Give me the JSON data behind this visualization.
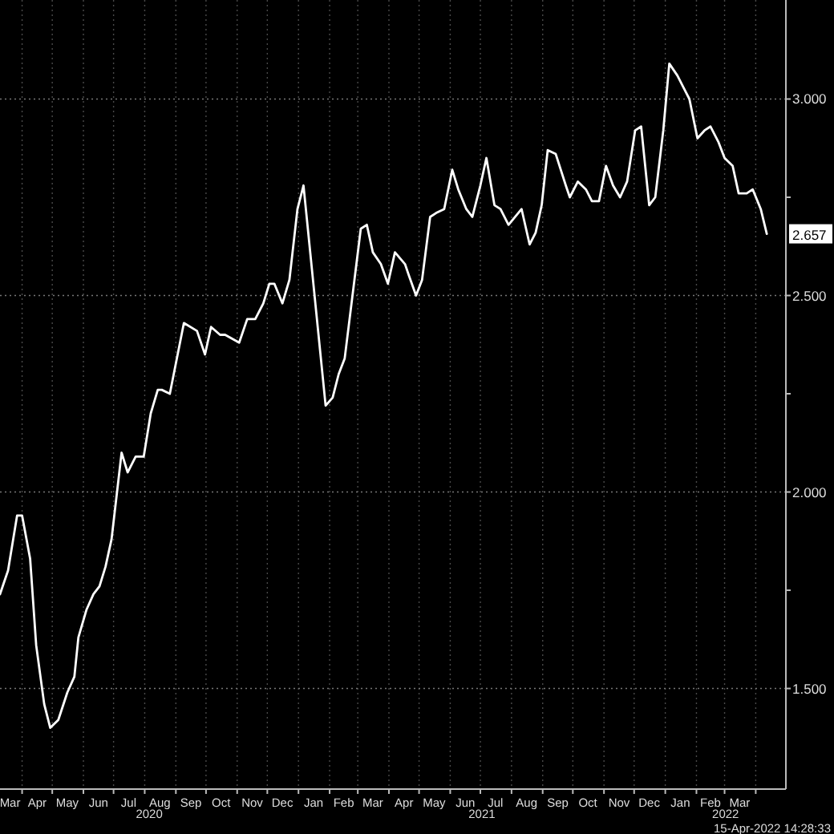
{
  "chart_data": {
    "type": "line",
    "x": [
      "2020-03-10",
      "2020-03-18",
      "2020-03-27",
      "2020-04-01",
      "2020-04-09",
      "2020-04-15",
      "2020-04-23",
      "2020-04-29",
      "2020-05-07",
      "2020-05-16",
      "2020-05-23",
      "2020-05-27",
      "2020-06-04",
      "2020-06-11",
      "2020-06-17",
      "2020-06-23",
      "2020-06-29",
      "2020-07-09",
      "2020-07-15",
      "2020-07-23",
      "2020-07-31",
      "2020-08-07",
      "2020-08-14",
      "2020-08-18",
      "2020-08-26",
      "2020-09-09",
      "2020-09-22",
      "2020-09-30",
      "2020-10-06",
      "2020-10-15",
      "2020-10-20",
      "2020-11-03",
      "2020-11-11",
      "2020-11-19",
      "2020-11-27",
      "2020-12-03",
      "2020-12-08",
      "2020-12-16",
      "2020-12-23",
      "2020-12-31",
      "2021-01-06",
      "2021-01-28",
      "2021-02-04",
      "2021-02-10",
      "2021-02-16",
      "2021-03-04",
      "2021-03-10",
      "2021-03-16",
      "2021-03-24",
      "2021-03-31",
      "2021-04-07",
      "2021-04-17",
      "2021-04-21",
      "2021-04-28",
      "2021-05-04",
      "2021-05-12",
      "2021-05-18",
      "2021-05-26",
      "2021-06-03",
      "2021-06-09",
      "2021-06-17",
      "2021-06-23",
      "2021-07-01",
      "2021-07-07",
      "2021-07-15",
      "2021-07-21",
      "2021-07-29",
      "2021-08-11",
      "2021-08-19",
      "2021-08-25",
      "2021-08-31",
      "2021-09-06",
      "2021-09-14",
      "2021-09-24",
      "2021-09-28",
      "2021-10-06",
      "2021-10-14",
      "2021-10-20",
      "2021-10-27",
      "2021-11-03",
      "2021-11-10",
      "2021-11-17",
      "2021-11-24",
      "2021-12-02",
      "2021-12-08",
      "2021-12-16",
      "2021-12-22",
      "2021-12-30",
      "2022-01-05",
      "2022-01-13",
      "2022-01-19",
      "2022-01-25",
      "2022-02-02",
      "2022-02-09",
      "2022-02-15",
      "2022-02-23",
      "2022-03-01",
      "2022-03-09",
      "2022-03-15",
      "2022-03-23",
      "2022-03-29",
      "2022-04-06",
      "2022-04-12"
    ],
    "series": [
      {
        "color": "#ffffff",
        "values": [
          1.74,
          1.8,
          1.94,
          1.94,
          1.83,
          1.61,
          1.46,
          1.4,
          1.42,
          1.49,
          1.53,
          1.63,
          1.7,
          1.74,
          1.76,
          1.81,
          1.88,
          2.1,
          2.05,
          2.09,
          2.09,
          2.2,
          2.26,
          2.26,
          2.25,
          2.43,
          2.41,
          2.35,
          2.42,
          2.4,
          2.4,
          2.38,
          2.44,
          2.44,
          2.48,
          2.53,
          2.53,
          2.48,
          2.54,
          2.72,
          2.78,
          2.22,
          2.24,
          2.3,
          2.34,
          2.67,
          2.68,
          2.61,
          2.58,
          2.53,
          2.61,
          2.58,
          2.55,
          2.5,
          2.54,
          2.7,
          2.71,
          2.72,
          2.82,
          2.77,
          2.72,
          2.7,
          2.78,
          2.85,
          2.73,
          2.72,
          2.68,
          2.72,
          2.63,
          2.66,
          2.73,
          2.87,
          2.86,
          2.78,
          2.75,
          2.79,
          2.77,
          2.74,
          2.74,
          2.83,
          2.78,
          2.75,
          2.79,
          2.92,
          2.93,
          2.73,
          2.75,
          2.92,
          3.09,
          3.06,
          3.03,
          3.0,
          2.9,
          2.92,
          2.93,
          2.89,
          2.85,
          2.83,
          2.76,
          2.76,
          2.77,
          2.72,
          2.657
        ],
        "value_labels": [
          null,
          null,
          null,
          null,
          null,
          null,
          null,
          null,
          null,
          null,
          null,
          null,
          null,
          null,
          null,
          null,
          null,
          null,
          null,
          null,
          null,
          null,
          null,
          null,
          null,
          null,
          null,
          null,
          null,
          null,
          null,
          null,
          null,
          null,
          null,
          null,
          null,
          null,
          null,
          null,
          null,
          null,
          null,
          null,
          null,
          null,
          null,
          null,
          null,
          null,
          null,
          null,
          null,
          null,
          null,
          null,
          null,
          null,
          null,
          null,
          null,
          null,
          null,
          null,
          null,
          null,
          null,
          null,
          null,
          null,
          null,
          null,
          null,
          null,
          null,
          null,
          null,
          null,
          null,
          null,
          null,
          null,
          null,
          null,
          null,
          null,
          null,
          null,
          null,
          null,
          null,
          null,
          null,
          null,
          null,
          null,
          null,
          null,
          null,
          null,
          null,
          null,
          "2.657"
        ]
      }
    ],
    "xlim": [
      "2020-03-10",
      "2022-05-01"
    ],
    "xticks": [
      {
        "value": "2020-04-01",
        "label": null
      },
      {
        "value": "2020-05-01",
        "label": null
      },
      {
        "value": "2020-06-01",
        "label": null
      },
      {
        "value": "2020-07-01",
        "label": null
      },
      {
        "value": "2020-08-01",
        "label": null
      },
      {
        "value": "2020-09-01",
        "label": null
      },
      {
        "value": "2020-10-01",
        "label": null
      },
      {
        "value": "2020-11-01",
        "label": null
      },
      {
        "value": "2020-12-01",
        "label": null
      },
      {
        "value": "2021-01-01",
        "label": null
      },
      {
        "value": "2021-02-01",
        "label": null
      },
      {
        "value": "2021-03-01",
        "label": null
      },
      {
        "value": "2021-04-01",
        "label": null
      },
      {
        "value": "2021-05-01",
        "label": null
      },
      {
        "value": "2021-06-01",
        "label": null
      },
      {
        "value": "2021-07-01",
        "label": null
      },
      {
        "value": "2021-08-01",
        "label": null
      },
      {
        "value": "2021-09-01",
        "label": null
      },
      {
        "value": "2021-10-01",
        "label": null
      },
      {
        "value": "2021-11-01",
        "label": null
      },
      {
        "value": "2021-12-01",
        "label": null
      },
      {
        "value": "2022-01-01",
        "label": null
      },
      {
        "value": "2022-02-01",
        "label": null
      },
      {
        "value": "2022-03-01",
        "label": null
      },
      {
        "value": "2022-04-01",
        "label": null
      },
      {
        "value": "2020-03-20",
        "label": "Mar"
      },
      {
        "value": "2020-04-16",
        "label": "Apr"
      },
      {
        "value": "2020-05-16",
        "label": "May"
      },
      {
        "value": "2020-06-16",
        "label": "Jun"
      },
      {
        "value": "2020-07-16",
        "label": "Jul"
      },
      {
        "value": "2020-08-16",
        "label": "Aug"
      },
      {
        "value": "2020-09-16",
        "label": "Sep"
      },
      {
        "value": "2020-10-16",
        "label": "Oct"
      },
      {
        "value": "2020-11-16",
        "label": "Nov"
      },
      {
        "value": "2020-12-16",
        "label": "Dec"
      },
      {
        "value": "2021-01-16",
        "label": "Jan"
      },
      {
        "value": "2021-02-15",
        "label": "Feb"
      },
      {
        "value": "2021-03-16",
        "label": "Mar"
      },
      {
        "value": "2021-04-16",
        "label": "Apr"
      },
      {
        "value": "2021-05-16",
        "label": "May"
      },
      {
        "value": "2021-06-16",
        "label": "Jun"
      },
      {
        "value": "2021-07-16",
        "label": "Jul"
      },
      {
        "value": "2021-08-16",
        "label": "Aug"
      },
      {
        "value": "2021-09-16",
        "label": "Sep"
      },
      {
        "value": "2021-10-16",
        "label": "Oct"
      },
      {
        "value": "2021-11-16",
        "label": "Nov"
      },
      {
        "value": "2021-12-16",
        "label": "Dec"
      },
      {
        "value": "2022-01-16",
        "label": "Jan"
      },
      {
        "value": "2022-02-15",
        "label": "Feb"
      },
      {
        "value": "2022-03-16",
        "label": "Mar"
      }
    ],
    "ylim": [
      1.244,
      3.252
    ],
    "yticks": [
      {
        "value": 1.5,
        "label": "1.500"
      },
      {
        "value": 1.75,
        "label": null
      },
      {
        "value": 2.0,
        "label": "2.000"
      },
      {
        "value": 2.25,
        "label": null
      },
      {
        "value": 2.5,
        "label": "2.500"
      },
      {
        "value": 2.75,
        "label": null
      },
      {
        "value": 3.0,
        "label": "3.000"
      }
    ],
    "grid": true,
    "marker": "none",
    "line_style": "solid",
    "annotations": [
      "2020",
      "2021",
      "2022",
      "15-Apr-2022 14:28:33"
    ]
  }
}
